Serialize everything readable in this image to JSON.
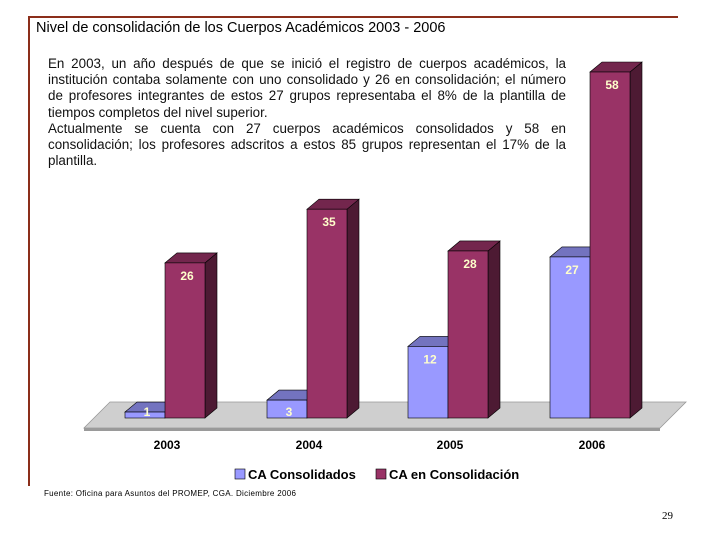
{
  "title": "Nivel de consolidación de los Cuerpos Académicos 2003 - 2006",
  "paragraphs": [
    "En 2003, un año después de que se inició el registro de cuerpos académicos, la institución contaba solamente con uno consolidado y 26 en consolidación; el número de profesores integrantes de estos 27 grupos representaba el 8% de la plantilla de tiempos completos del nivel superior.",
    "Actualmente se cuenta con 27 cuerpos académicos consolidados y 58 en consolidación; los profesores adscritos a estos 85 grupos representan el 17% de la plantilla."
  ],
  "source": "Fuente: Oficina para Asuntos del PROMEP, CGA. Diciembre 2006",
  "page_number": "29",
  "colors": {
    "frame": "#8b2e1a",
    "consolidados": "#9999ff",
    "en_consolidacion": "#993366",
    "label_text": "#ffffcc"
  },
  "chart_data": {
    "type": "bar",
    "categories": [
      "2003",
      "2004",
      "2005",
      "2006"
    ],
    "series": [
      {
        "name": "CA Consolidados",
        "values": [
          1,
          3,
          12,
          27
        ]
      },
      {
        "name": "CA en Consolidación",
        "values": [
          26,
          35,
          28,
          58
        ]
      }
    ],
    "ylim": [
      0,
      58
    ],
    "grid": false,
    "legend": "bottom",
    "style": "3d-columns"
  }
}
